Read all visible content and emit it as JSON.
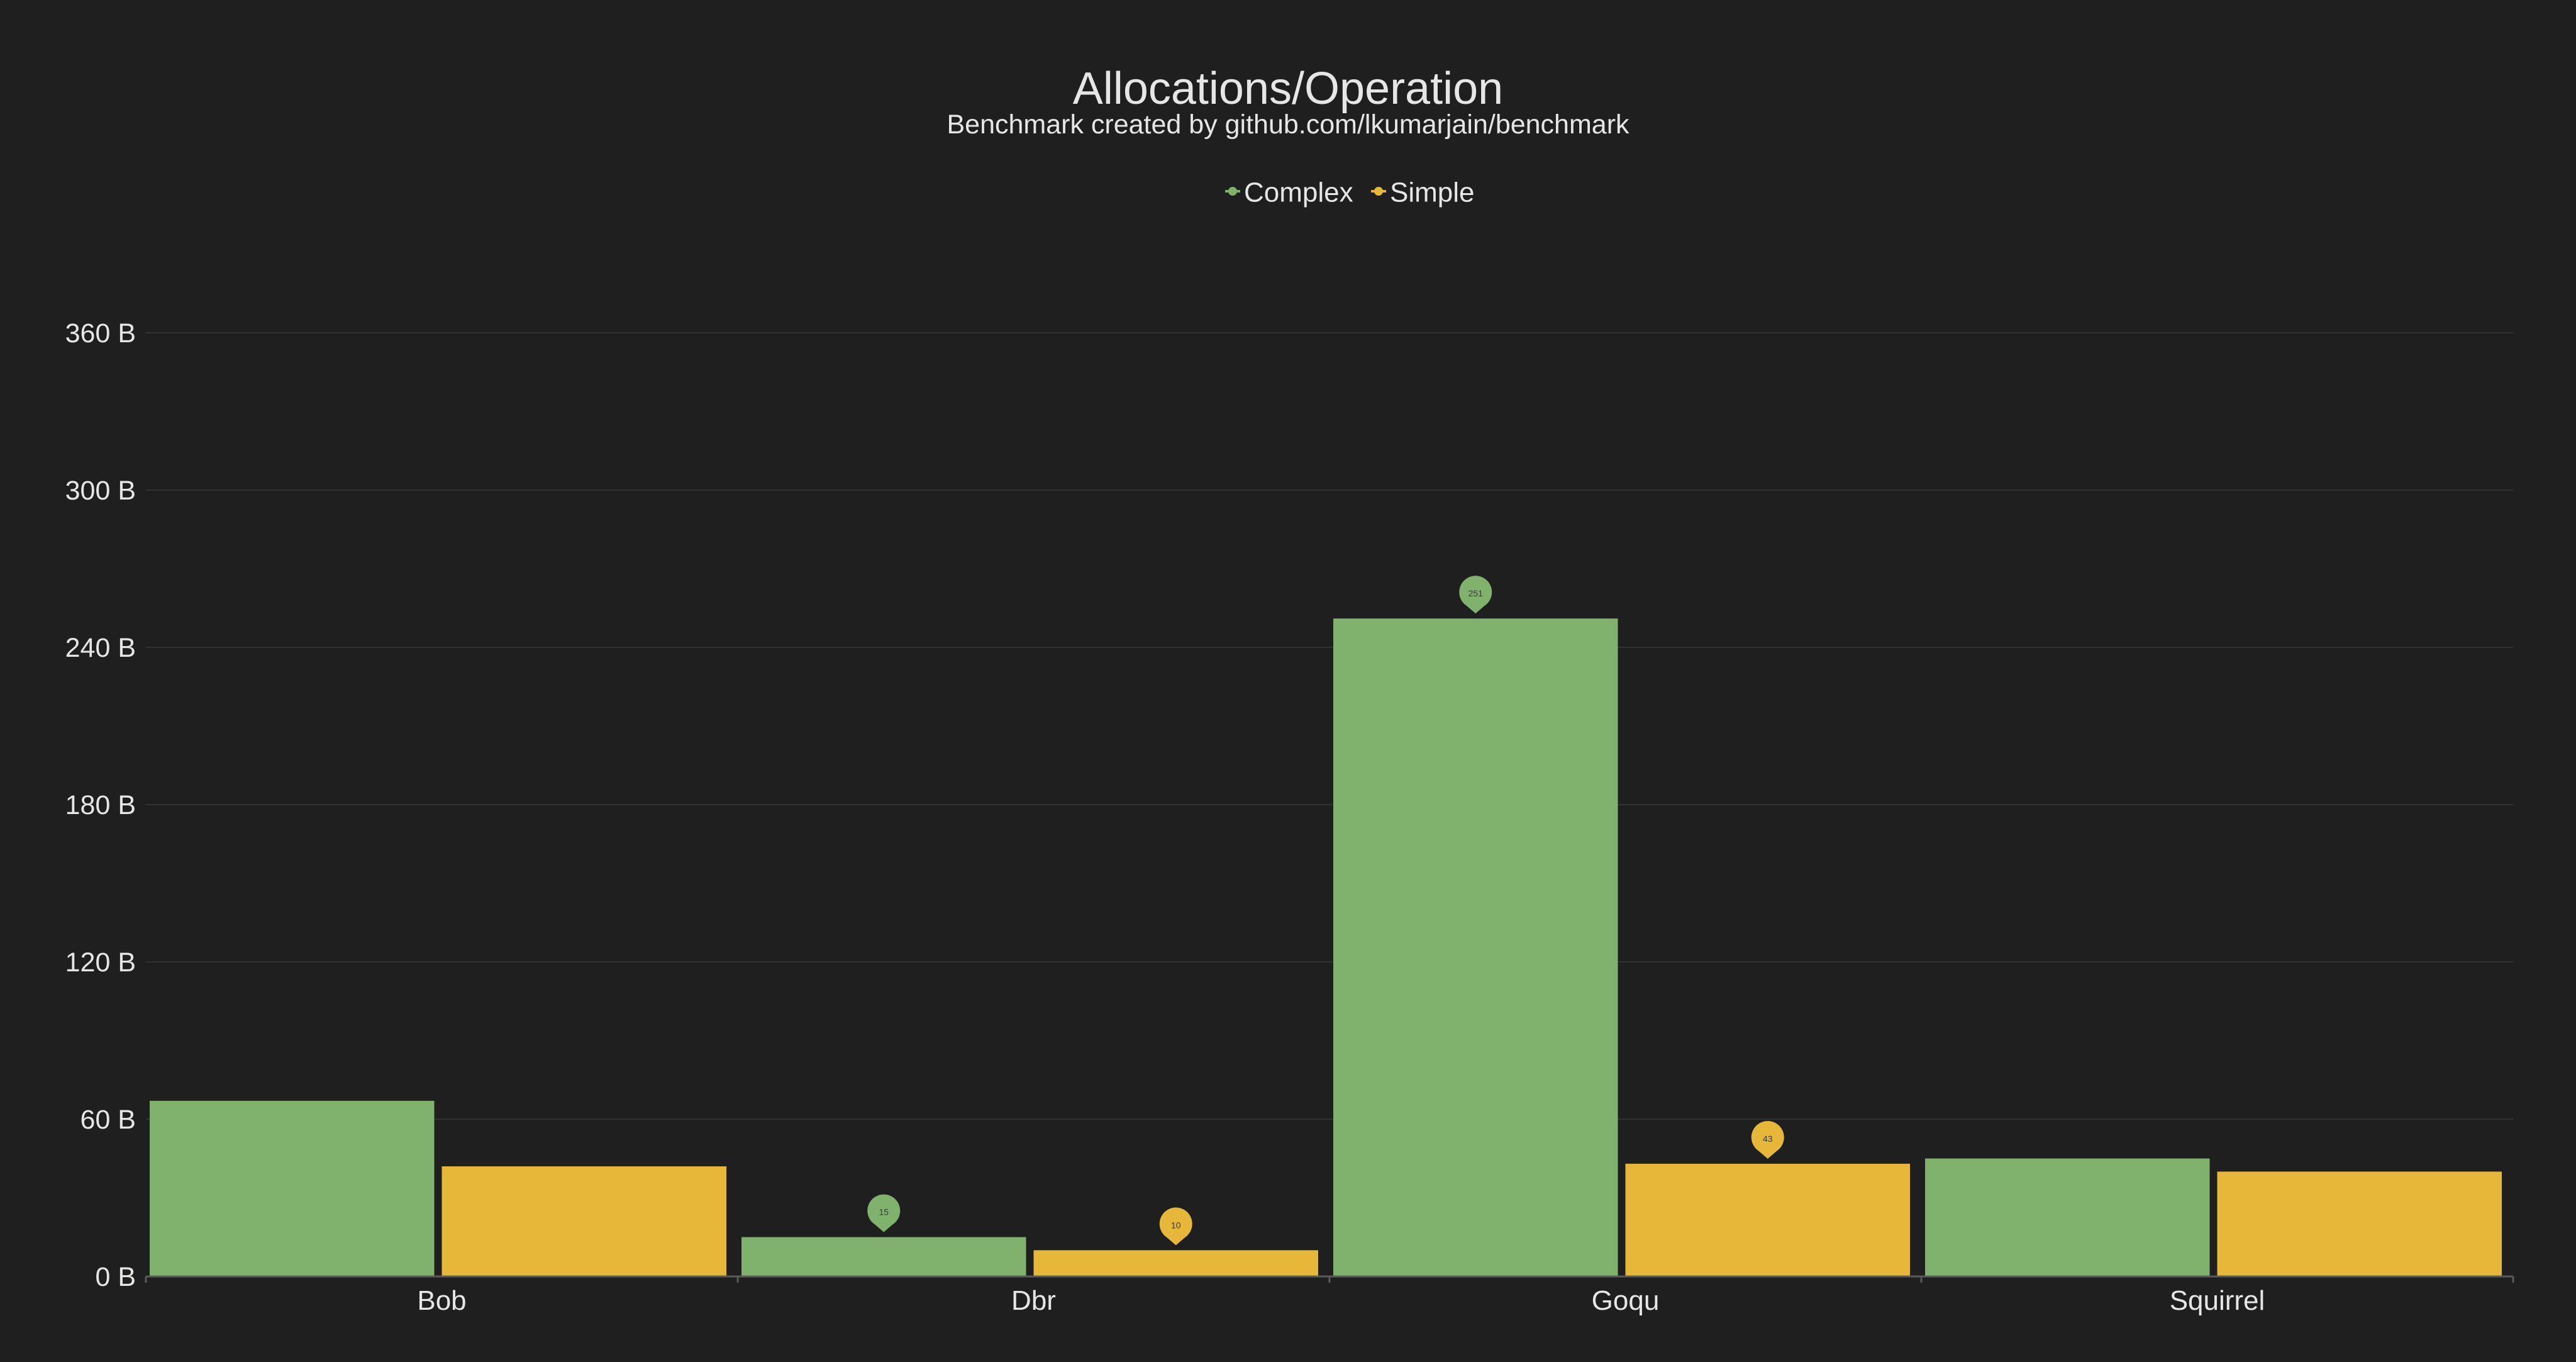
{
  "colors": {
    "background": "#201f20",
    "text": "#e6e6e6",
    "gridline": "#333233",
    "axis": "#5a5a5a",
    "complex": "#80b26e",
    "simple": "#e6b739",
    "marker_text": "#3a3a3a"
  },
  "chart_data": {
    "type": "bar",
    "title": "Allocations/Operation",
    "subtitle": "Benchmark created by github.com/lkumarjain/benchmark",
    "xlabel": "",
    "ylabel": "",
    "categories": [
      "Bob",
      "Dbr",
      "Goqu",
      "Squirrel"
    ],
    "series": [
      {
        "name": "Complex",
        "color": "#80b26e",
        "values": [
          67,
          15,
          251,
          45
        ],
        "markers": [
          null,
          "15",
          "251",
          null
        ]
      },
      {
        "name": "Simple",
        "color": "#e6b739",
        "values": [
          42,
          10,
          43,
          40
        ],
        "markers": [
          null,
          "10",
          "43",
          null
        ]
      }
    ],
    "ylim": [
      0,
      360
    ],
    "yticks": [
      {
        "value": 0,
        "label": "0 B"
      },
      {
        "value": 60,
        "label": "60 B"
      },
      {
        "value": 120,
        "label": "120 B"
      },
      {
        "value": 180,
        "label": "180 B"
      },
      {
        "value": 240,
        "label": "240 B"
      },
      {
        "value": 300,
        "label": "300 B"
      },
      {
        "value": 360,
        "label": "360 B"
      }
    ],
    "grid": true,
    "legend_position": "top-center"
  }
}
